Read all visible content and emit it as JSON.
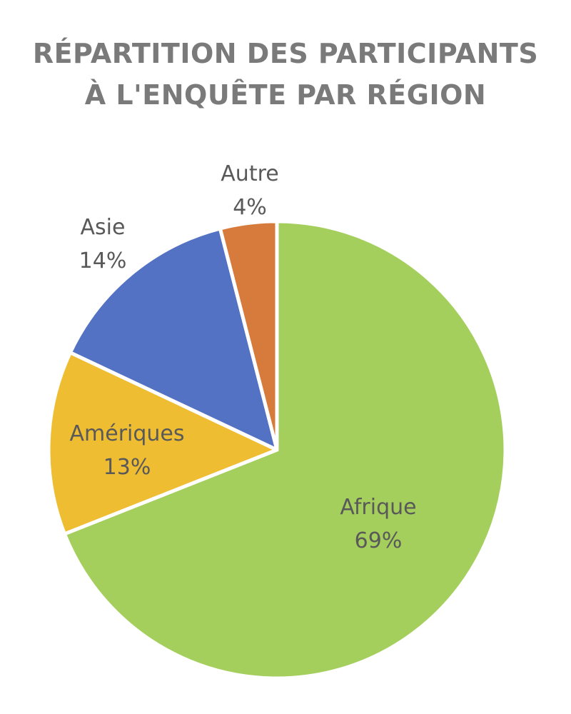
{
  "title_line_1": "RÉPARTITION DES PARTICIPANTS",
  "title_line_2": "À L'ENQUÊTE PAR RÉGION",
  "chart_data": {
    "type": "pie",
    "title": "RÉPARTITION DES PARTICIPANTS À L'ENQUÊTE PAR RÉGION",
    "categories": [
      "Afrique",
      "Amériques",
      "Asie",
      "Autre"
    ],
    "values": [
      69,
      13,
      14,
      4
    ],
    "value_labels": [
      "69%",
      "13%",
      "14%",
      "4%"
    ],
    "colors": [
      "#a5cf5d",
      "#efbd32",
      "#5472c4",
      "#d67b3c"
    ],
    "start": "12 o'clock",
    "direction": "clockwise",
    "legend": "none",
    "labels_position": "slice label and percentage"
  }
}
